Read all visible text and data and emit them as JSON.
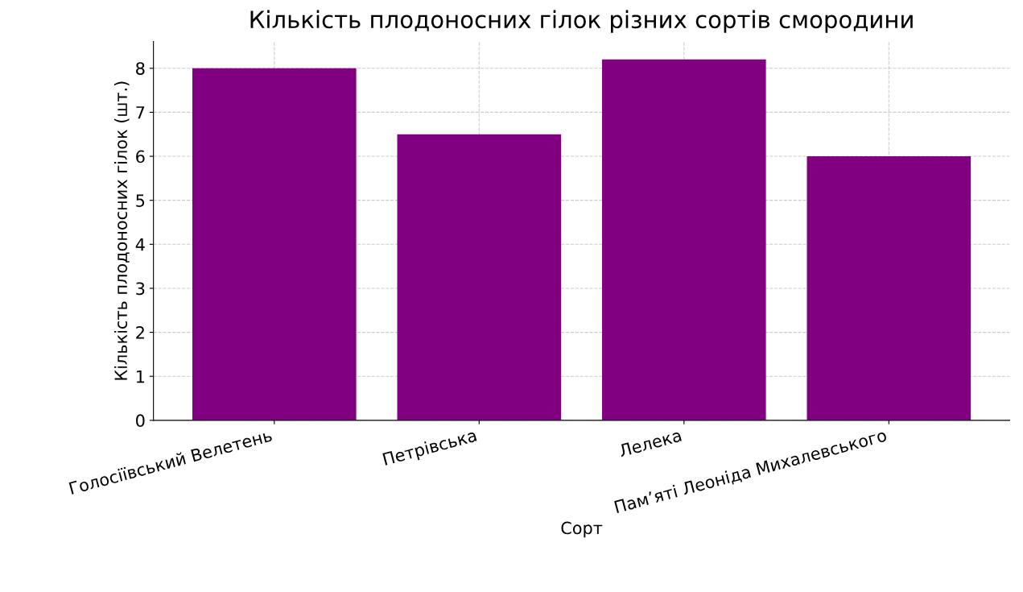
{
  "chart_data": {
    "type": "bar",
    "title": "Кількість плодоносних гілок різних сортів смородини",
    "xlabel": "Сорт",
    "ylabel": "Кількість плодоносних гілок (шт.)",
    "categories": [
      "Голосіївський Велетень",
      "Петрівська",
      "Лелека",
      "Пам’яті Леоніда Михалевського"
    ],
    "values": [
      8.0,
      6.5,
      8.2,
      6.0
    ],
    "color": "#800080",
    "ylim": [
      0,
      8.61
    ],
    "yticks": [
      0,
      1,
      2,
      3,
      4,
      5,
      6,
      7,
      8
    ],
    "grid": true,
    "line_style": "dashed"
  }
}
